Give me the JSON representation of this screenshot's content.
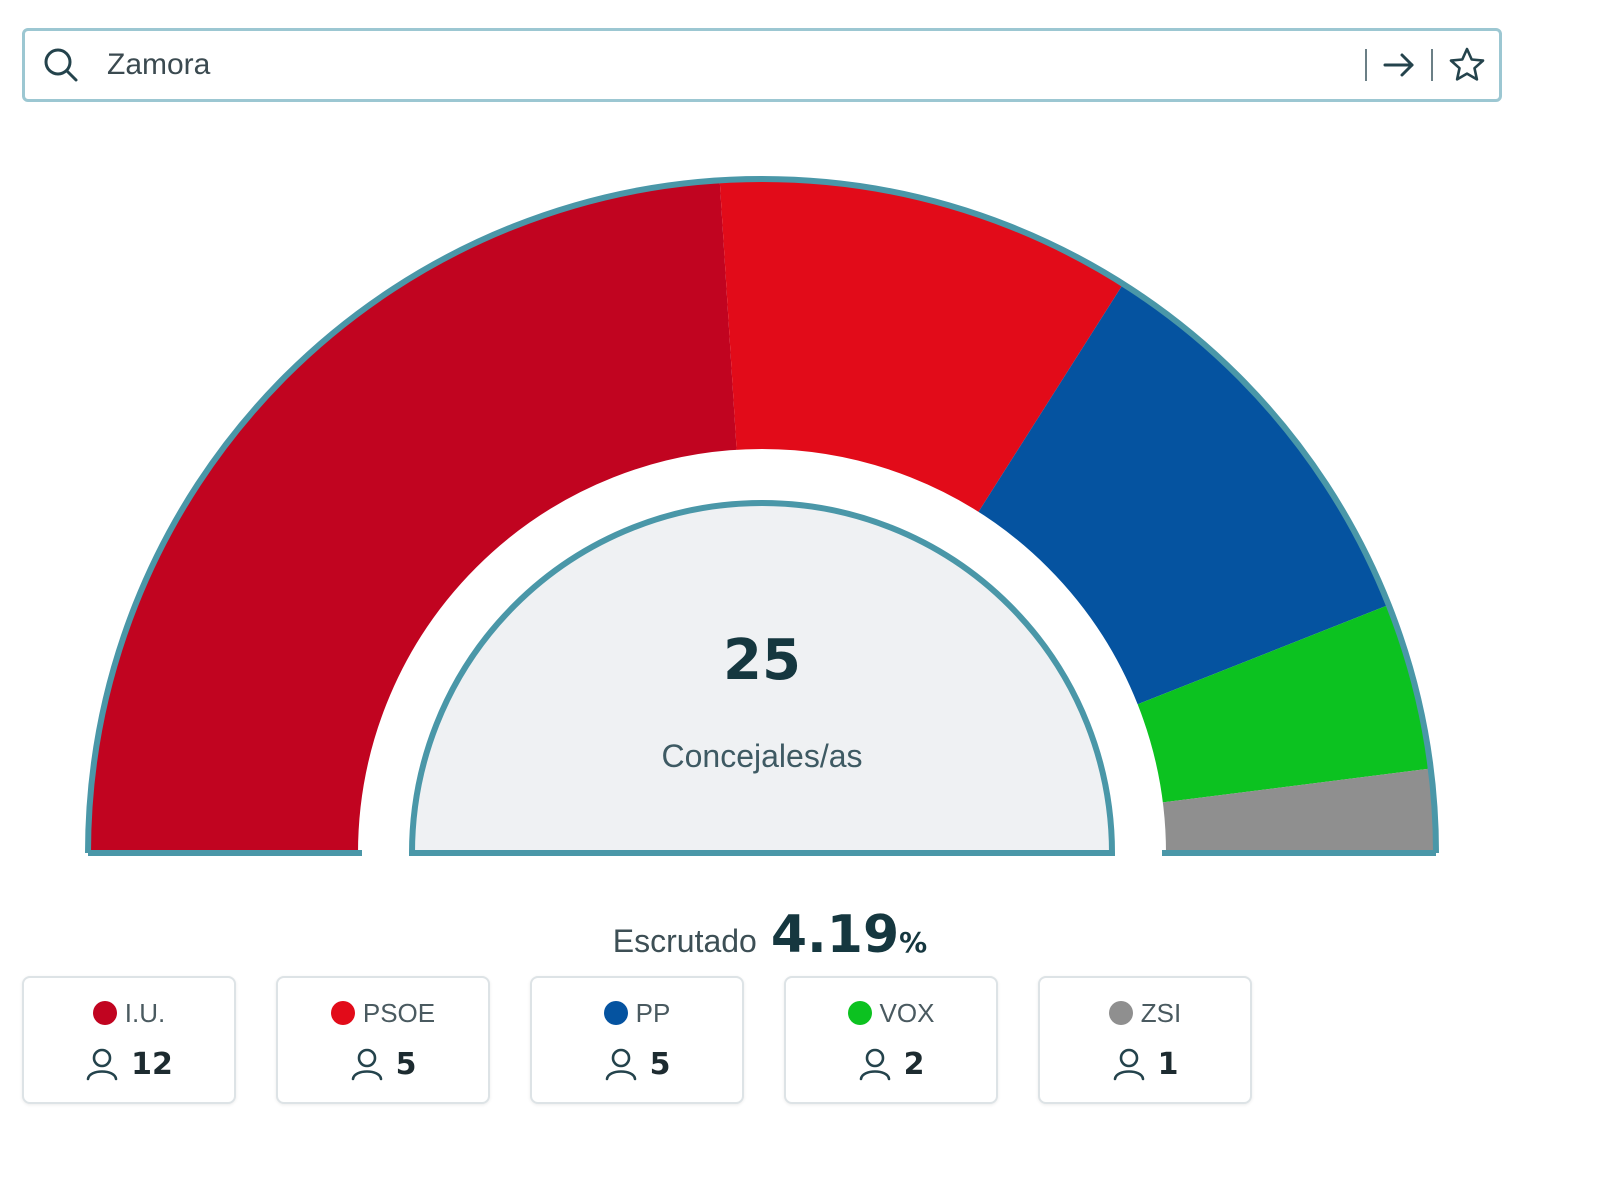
{
  "search": {
    "value": "Zamora"
  },
  "icons": {
    "search": "search-icon",
    "submit": "arrow-right-icon",
    "favorite": "star-icon",
    "seats": "person-icon"
  },
  "chart_data": {
    "type": "hemicycle",
    "total": "25",
    "total_label": "Concejales/as",
    "series": [
      {
        "name": "I.U.",
        "seats": 12,
        "color": "#c10420"
      },
      {
        "name": "PSOE",
        "seats": 5,
        "color": "#e20b19"
      },
      {
        "name": "PP",
        "seats": 5,
        "color": "#0553a0"
      },
      {
        "name": "VOX",
        "seats": 2,
        "color": "#0cc220"
      },
      {
        "name": "ZSI",
        "seats": 1,
        "color": "#8f8f8f"
      }
    ]
  },
  "scrutiny": {
    "label": "Escrutado",
    "value": "4.19",
    "unit": "%"
  },
  "parties": [
    {
      "name": "I.U.",
      "seats": "12",
      "color": "#c10420"
    },
    {
      "name": "PSOE",
      "seats": "5",
      "color": "#e20b19"
    },
    {
      "name": "PP",
      "seats": "5",
      "color": "#0553a0"
    },
    {
      "name": "VOX",
      "seats": "2",
      "color": "#0cc220"
    },
    {
      "name": "ZSI",
      "seats": "1",
      "color": "#8f8f8f"
    }
  ]
}
